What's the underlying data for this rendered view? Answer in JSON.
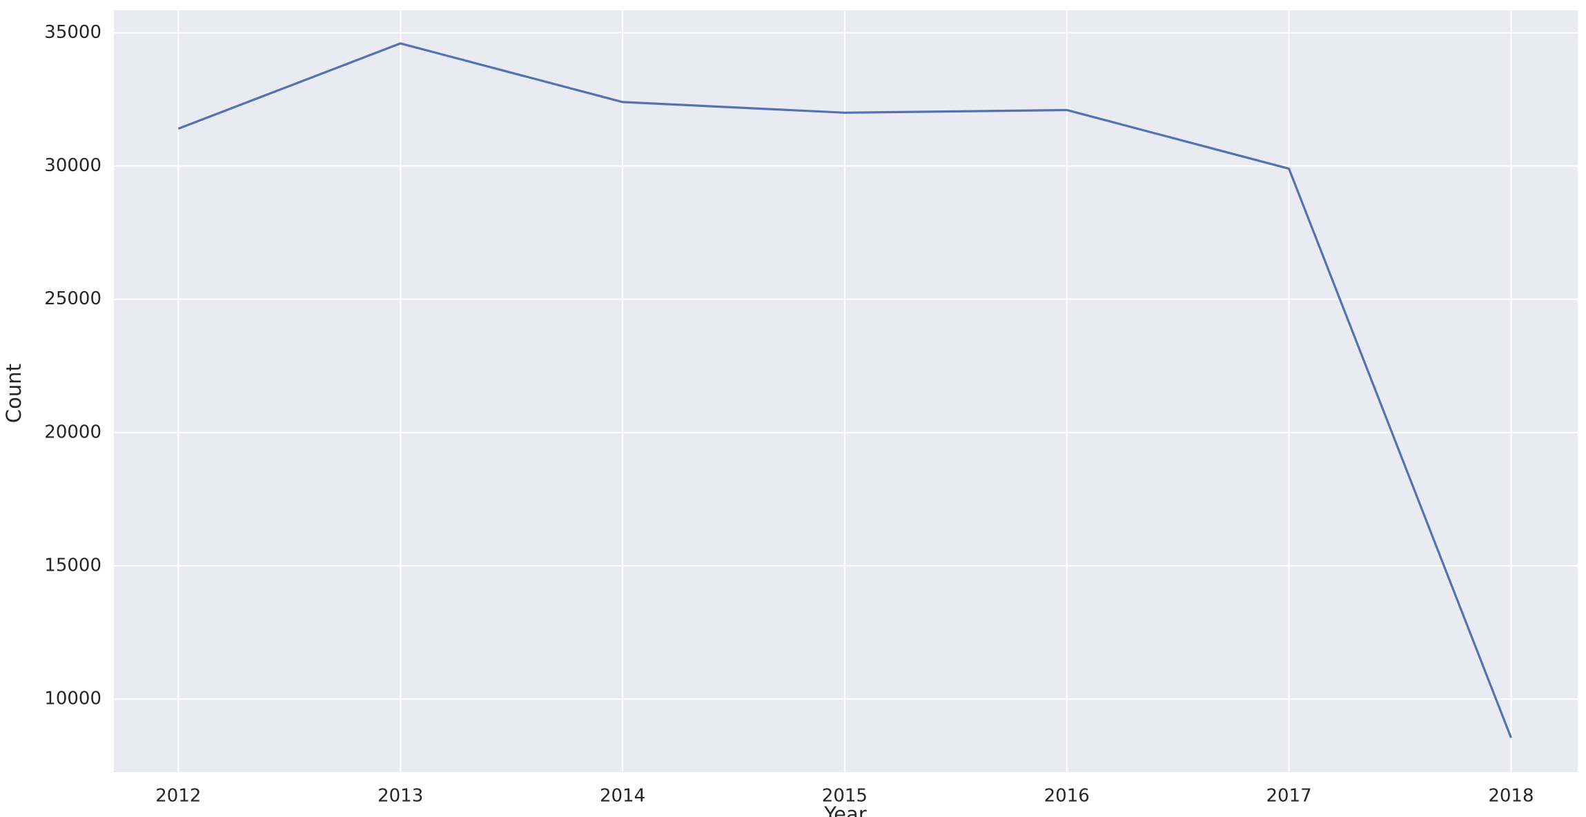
{
  "chart_data": {
    "type": "line",
    "xlabel": "Year",
    "ylabel": "Count",
    "x": [
      2012,
      2013,
      2014,
      2015,
      2016,
      2017,
      2018
    ],
    "series": [
      {
        "name": "Count",
        "color": "#5471b2",
        "values": [
          31400,
          34600,
          32400,
          32000,
          32100,
          29900,
          8550
        ]
      }
    ],
    "xlim": [
      2011.71,
      2018.3
    ],
    "xticks": [
      2012,
      2013,
      2014,
      2015,
      2016,
      2017,
      2018
    ],
    "ylim": [
      7260,
      35840
    ],
    "yticks": [
      10000,
      15000,
      20000,
      25000,
      30000,
      35000
    ],
    "grid": true,
    "background": "#eaeaf2"
  }
}
